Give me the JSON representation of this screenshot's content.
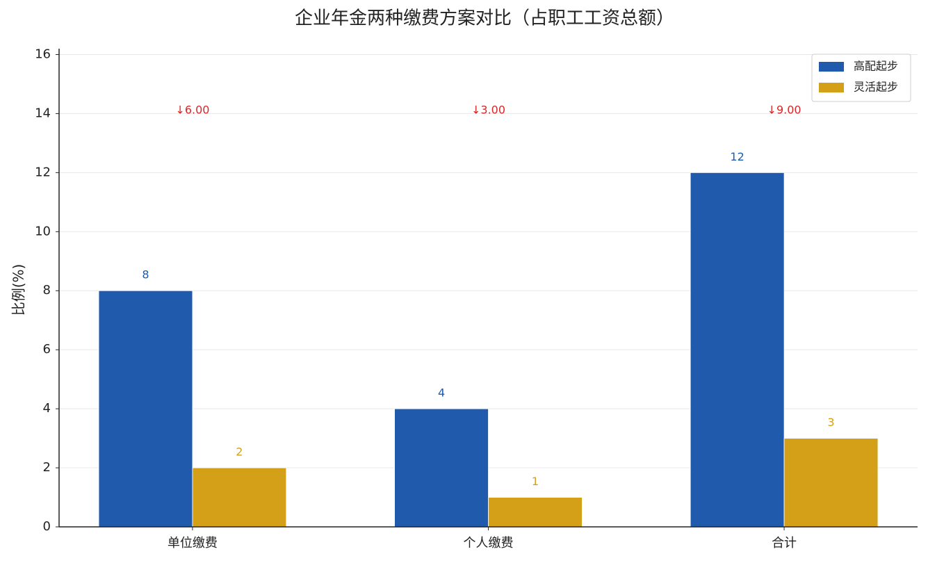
{
  "chart_data": {
    "type": "bar",
    "title": "企业年金两种缴费方案对比（占职工工资总额）",
    "y_label": "比例(%)",
    "categories": [
      "单位缴费",
      "个人缴费",
      "合计"
    ],
    "series": [
      {
        "name": "高配起步",
        "color": "#1f5aad",
        "values": [
          8,
          4,
          12
        ]
      },
      {
        "name": "灵活起步",
        "color": "#d4a017",
        "values": [
          2,
          1,
          3
        ]
      }
    ],
    "annotations": [
      "↓6.00",
      "↓3.00",
      "↓9.00"
    ],
    "annotation_color": "#d62728",
    "ylim": [
      0,
      16.2
    ],
    "yticks": [
      0,
      2,
      4,
      6,
      8,
      10,
      12,
      14,
      16
    ],
    "grid": true,
    "legend": "upper right"
  }
}
